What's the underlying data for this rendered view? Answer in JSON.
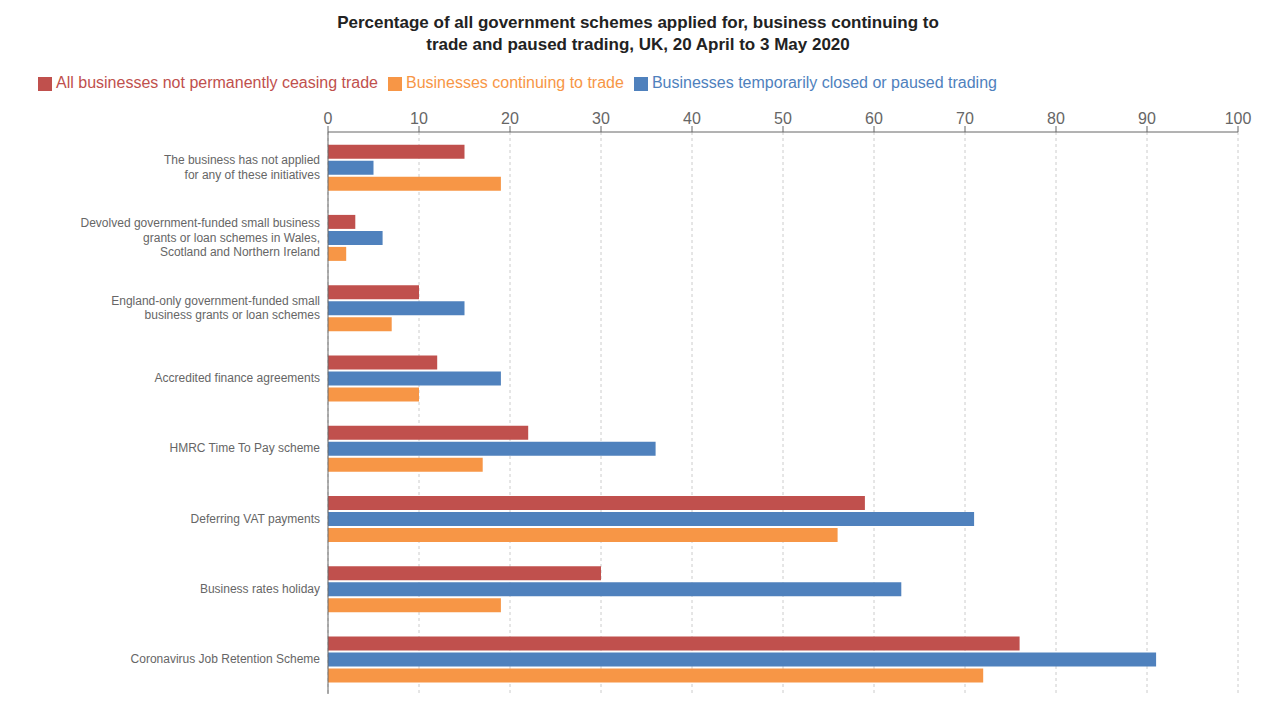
{
  "chart_data": {
    "type": "bar",
    "orientation": "horizontal",
    "title": "Percentage of all government schemes applied for, business continuing to\ntrade and paused trading, UK, 20 April to 3 May 2020",
    "categories": [
      "Coronavirus Job Retention Scheme",
      "Business rates holiday",
      "Deferring VAT payments",
      "HMRC Time To Pay scheme",
      "Accredited finance agreements",
      "England-only government-funded small\nbusiness grants or loan schemes",
      "Devolved government-funded small business\ngrants or loan schemes in Wales,\nScotland and Northern Ireland",
      "The business has not applied\nfor any of these initiatives"
    ],
    "series": [
      {
        "name": "All businesses not permanently ceasing trade",
        "color": "#C0504D",
        "values": [
          76,
          30,
          59,
          22,
          12,
          10,
          3,
          15
        ]
      },
      {
        "name": "Businesses temporarily closed or paused trading",
        "color": "#4F81BD",
        "values": [
          91,
          63,
          71,
          36,
          19,
          15,
          6,
          5
        ]
      },
      {
        "name": "Businesses continuing to trade",
        "color": "#F79646",
        "values": [
          72,
          19,
          56,
          17,
          10,
          7,
          2,
          19
        ]
      }
    ],
    "xlim": [
      0,
      100
    ],
    "xticks": [
      0,
      10,
      20,
      30,
      40,
      50,
      60,
      70,
      80,
      90,
      100
    ],
    "grid": true,
    "legend": "top"
  }
}
